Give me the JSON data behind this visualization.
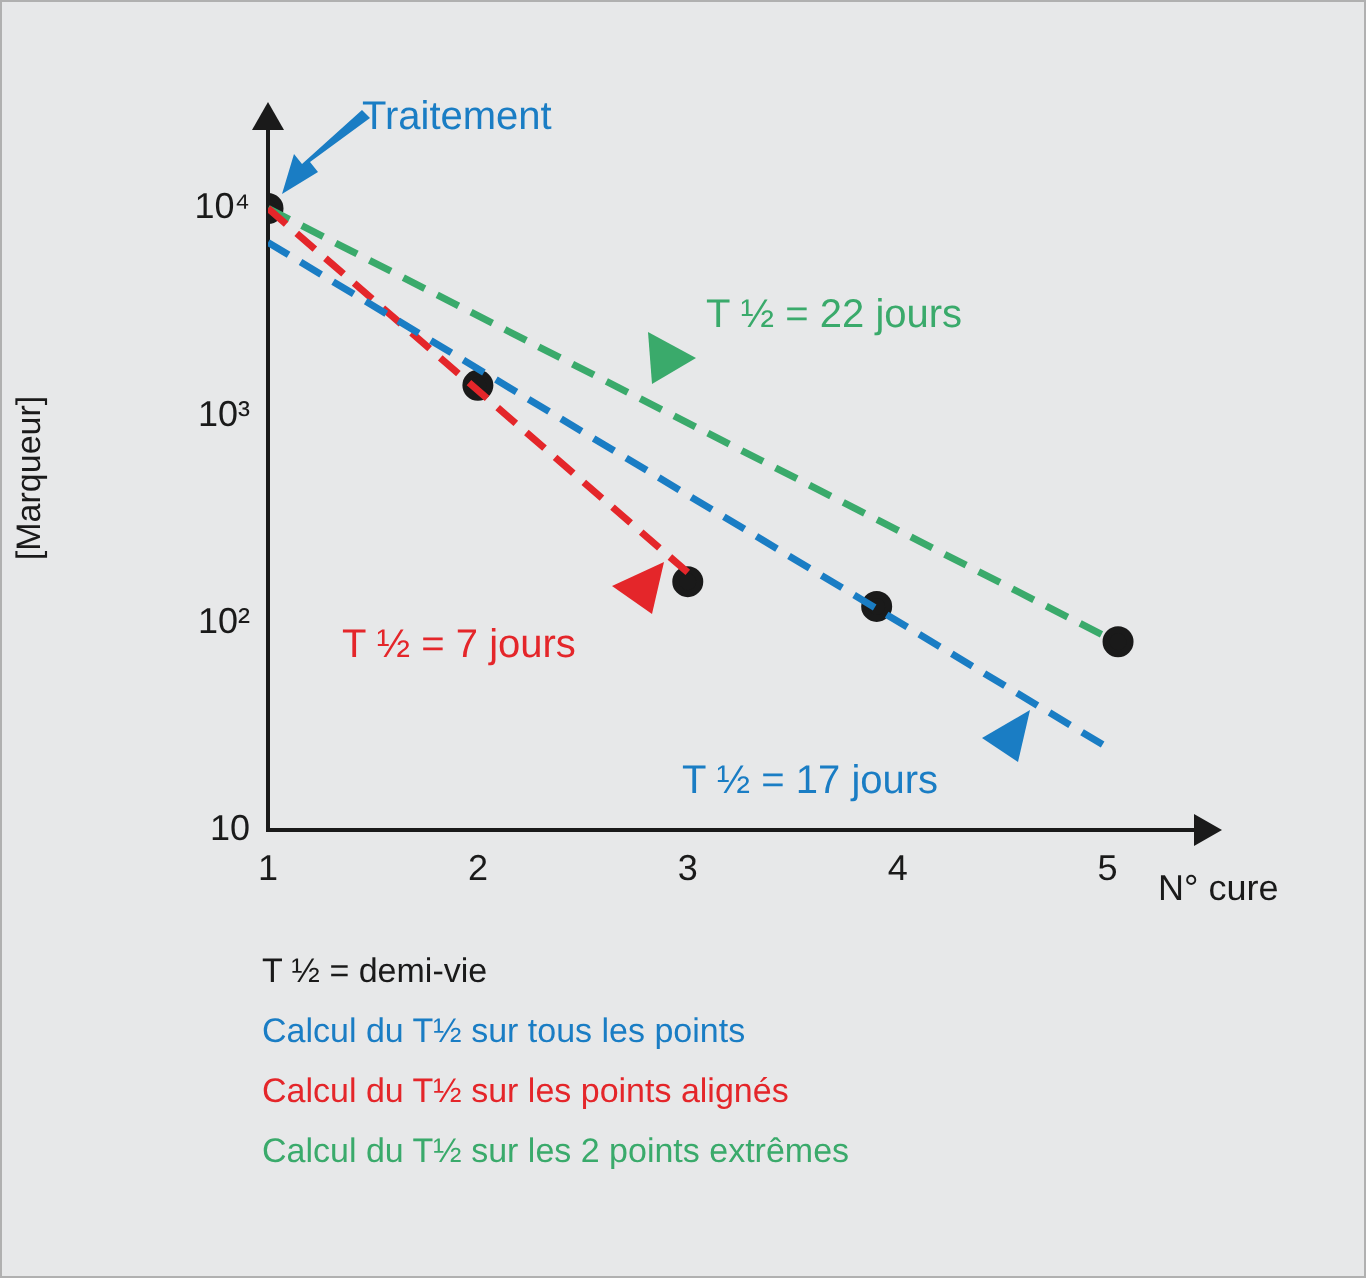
{
  "chart_data": {
    "type": "line",
    "xlabel": "N° cure",
    "ylabel": "[Marqueur]",
    "series": [
      {
        "name": "Calcul du T½ sur tous les points",
        "color": "#1a7dc4",
        "x": [
          1,
          5
        ],
        "values": [
          6850,
          25
        ],
        "line_style": "dashed",
        "marker": "none"
      },
      {
        "name": "Calcul du T½ sur les points alignés",
        "color": "#e4262a",
        "x": [
          1,
          3
        ],
        "values": [
          10000,
          175
        ],
        "line_style": "dashed",
        "marker": "none"
      },
      {
        "name": "Calcul du T½ sur les 2 points extrêmes",
        "color": "#3aaa6b",
        "x": [
          1,
          5
        ],
        "values": [
          10000,
          85
        ],
        "line_style": "dashed",
        "marker": "none"
      },
      {
        "type": "scatter",
        "color": "#1a1a1a",
        "x": [
          1,
          2,
          3,
          3.9,
          5.05
        ],
        "values": [
          10000,
          1400,
          158,
          120,
          81
        ],
        "marker": "circle"
      }
    ],
    "xlim": [
      1,
      5.45
    ],
    "xticks": [
      1,
      2,
      3,
      4,
      5
    ],
    "ylim": [
      10,
      25000
    ],
    "yticks": [
      10,
      {
        "value": 100,
        "label": "10²"
      },
      {
        "value": 1000,
        "label": "10³"
      },
      {
        "value": 10000,
        "label": "10⁴"
      }
    ],
    "log": "y",
    "grid": false,
    "legend": "bottom",
    "annotations": [
      "Traitement",
      "T ½ = 17 jours",
      "T ½ = 7 jours",
      "T ½ = 22 jours",
      "T ½ = demi-vie"
    ]
  }
}
